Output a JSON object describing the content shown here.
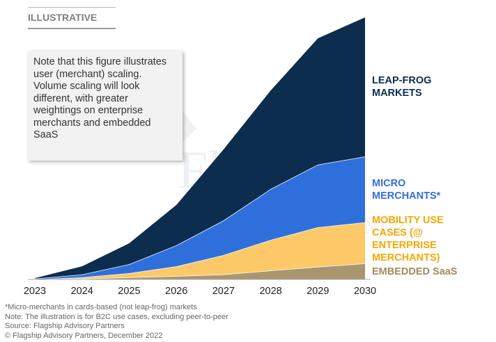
{
  "badge": "ILLUSTRATIVE",
  "note": "Note that this figure illustrates user (merchant) scaling. Volume scaling will look different, with greater weightings on enterprise merchants and embedded SaaS",
  "watermark": {
    "name": "Flagship",
    "tagline": "ADVISORY PARTNERS"
  },
  "chart_data": {
    "type": "stacked_area",
    "categories": [
      "2023",
      "2024",
      "2025",
      "2026",
      "2027",
      "2028",
      "2029",
      "2030"
    ],
    "ylim": [
      0,
      100
    ],
    "series": [
      {
        "name": "EMBEDDED SaaS",
        "color": "#a99670",
        "label_color": "#a08c5e",
        "values": [
          0,
          0.3,
          0.8,
          1.3,
          1.9,
          3.4,
          4.8,
          6.1
        ]
      },
      {
        "name": "MOBILITY USE CASES (@ ENTERPRISE MERCHANTS)",
        "color": "#fdc968",
        "label_color": "#f5a800",
        "values": [
          0,
          0.5,
          1.6,
          3.7,
          7.4,
          11.7,
          15.1,
          15.7
        ]
      },
      {
        "name": "MICRO MERCHANTS*",
        "color": "#2f6fdc",
        "label_color": "#2f6fdc",
        "values": [
          0.3,
          1.1,
          3.4,
          8.0,
          13.2,
          19.4,
          23.9,
          25.1
        ]
      },
      {
        "name": "LEAP-FROG MARKETS",
        "color": "#0d2d4f",
        "label_color": "#0d2d4f",
        "values": [
          0.2,
          3.1,
          8.0,
          15.4,
          27.1,
          37.6,
          48.2,
          53.1
        ]
      }
    ]
  },
  "footnotes": [
    "*Micro-merchants in cards-based (not leap-frog) markets",
    "Note: The illustration is for B2C use cases, excluding peer-to-peer",
    "Source: Flagship Advisory Partners",
    "© Flagship Advisory Partners, December 2022"
  ]
}
